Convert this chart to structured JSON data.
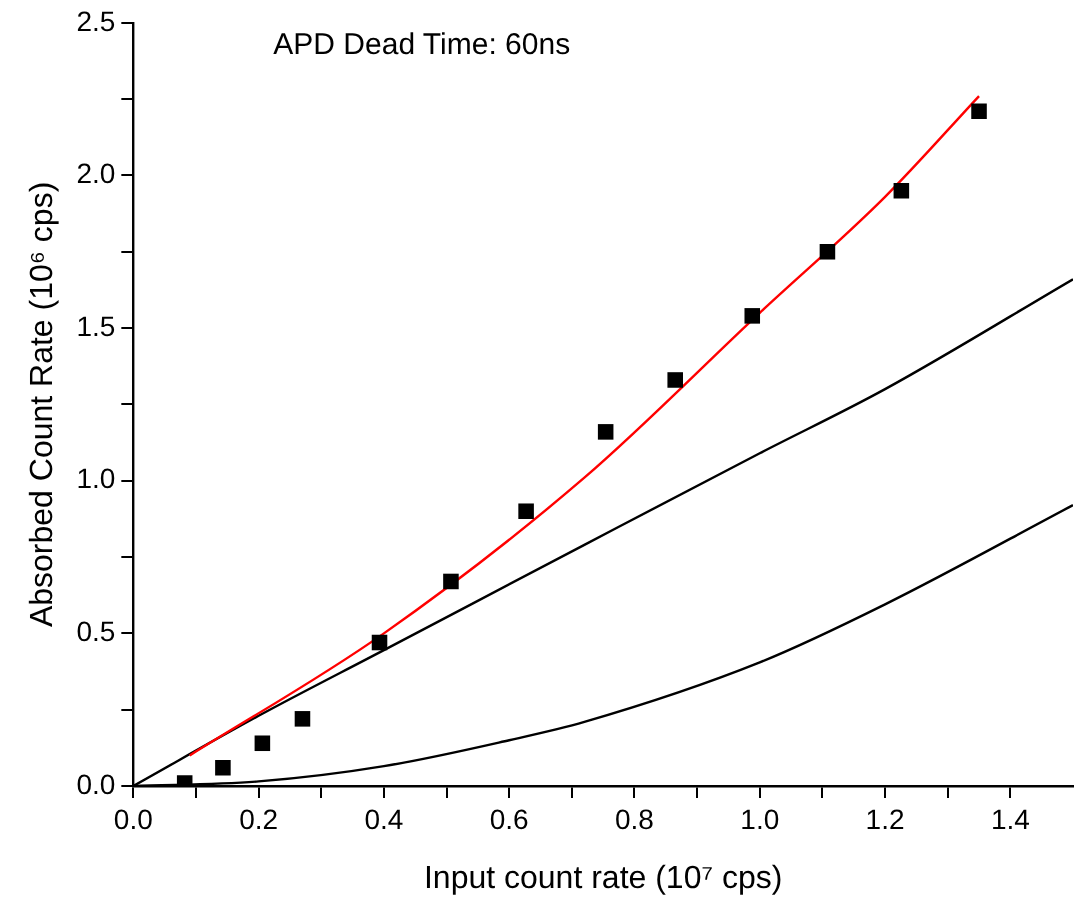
{
  "chart_data": {
    "type": "line",
    "xlabel": "Input count rate (10⁷ cps)",
    "ylabel": "Absorbed Count Rate (10⁶ cps)",
    "annotations": [
      "APD Dead Time: 60ns"
    ],
    "xlim": [
      0,
      1.5
    ],
    "xticks": [
      {
        "value": 0,
        "label": "0.0"
      },
      {
        "value": 0.1,
        "label": null
      },
      {
        "value": 0.2,
        "label": "0.2"
      },
      {
        "value": 0.3,
        "label": null
      },
      {
        "value": 0.4,
        "label": "0.4"
      },
      {
        "value": 0.5,
        "label": null
      },
      {
        "value": 0.6,
        "label": "0.6"
      },
      {
        "value": 0.7,
        "label": null
      },
      {
        "value": 0.8,
        "label": "0.8"
      },
      {
        "value": 0.9,
        "label": null
      },
      {
        "value": 1,
        "label": "1.0"
      },
      {
        "value": 1.1,
        "label": null
      },
      {
        "value": 1.2,
        "label": "1.2"
      },
      {
        "value": 1.3,
        "label": null
      },
      {
        "value": 1.4,
        "label": "1.4"
      }
    ],
    "ylim": [
      0,
      2.5
    ],
    "yticks": [
      {
        "value": 0,
        "label": "0.0"
      },
      {
        "value": 0.25,
        "label": null
      },
      {
        "value": 0.5,
        "label": "0.5"
      },
      {
        "value": 0.75,
        "label": null
      },
      {
        "value": 1,
        "label": "1.0"
      },
      {
        "value": 1.25,
        "label": null
      },
      {
        "value": 1.5,
        "label": "1.5"
      },
      {
        "value": 1.75,
        "label": null
      },
      {
        "value": 2,
        "label": "2.0"
      },
      {
        "value": 2.25,
        "label": null
      },
      {
        "value": 2.5,
        "label": "2.5"
      }
    ],
    "grid": false,
    "legend": false,
    "series": [
      {
        "type": "scatter",
        "marker": "square",
        "color": "#000000",
        "x": [
          0.082,
          0.143,
          0.206,
          0.27,
          0.393,
          0.507,
          0.627,
          0.754,
          0.865,
          0.988,
          1.108,
          1.226,
          1.35
        ],
        "values": [
          0.01,
          0.06,
          0.14,
          0.22,
          0.47,
          0.67,
          0.9,
          1.16,
          1.33,
          1.54,
          1.75,
          1.95,
          2.21
        ]
      },
      {
        "marker": "none",
        "line_style": "solid",
        "color": "#ff0000",
        "x": [
          0.09,
          0.4,
          0.72,
          1.0,
          1.2,
          1.35
        ],
        "values": [
          0.1,
          0.5,
          1.01,
          1.55,
          1.93,
          2.26
        ]
      },
      {
        "marker": "none",
        "line_style": "solid",
        "color": "#000000",
        "x": [
          0,
          0.2,
          0.4,
          0.72,
          1.0,
          1.2,
          1.5
        ],
        "values": [
          0,
          0.23,
          0.445,
          0.79,
          1.09,
          1.3,
          1.66
        ]
      },
      {
        "marker": "none",
        "line_style": "solid",
        "color": "#000000",
        "x": [
          0,
          0.2,
          0.4,
          0.6,
          0.72,
          1.0,
          1.2,
          1.5
        ],
        "values": [
          0,
          0.015,
          0.065,
          0.15,
          0.21,
          0.405,
          0.595,
          0.92
        ]
      }
    ]
  }
}
